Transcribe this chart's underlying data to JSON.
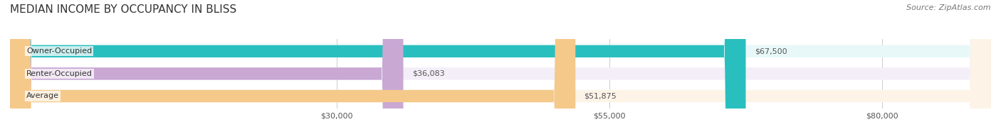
{
  "title": "MEDIAN INCOME BY OCCUPANCY IN BLISS",
  "source": "Source: ZipAtlas.com",
  "categories": [
    "Owner-Occupied",
    "Renter-Occupied",
    "Average"
  ],
  "values": [
    67500,
    36083,
    51875
  ],
  "labels": [
    "$67,500",
    "$36,083",
    "$51,875"
  ],
  "bar_colors": [
    "#2abfbf",
    "#c9a8d4",
    "#f5c98a"
  ],
  "bar_bg_colors": [
    "#e8f8f8",
    "#f3eef7",
    "#fdf3e7"
  ],
  "x_max": 90000,
  "x_ticks": [
    30000,
    55000,
    80000
  ],
  "x_tick_labels": [
    "$30,000",
    "$55,000",
    "$80,000"
  ],
  "title_fontsize": 11,
  "source_fontsize": 8,
  "bar_label_fontsize": 8,
  "tick_fontsize": 8,
  "background_color": "#ffffff",
  "bar_height": 0.55
}
